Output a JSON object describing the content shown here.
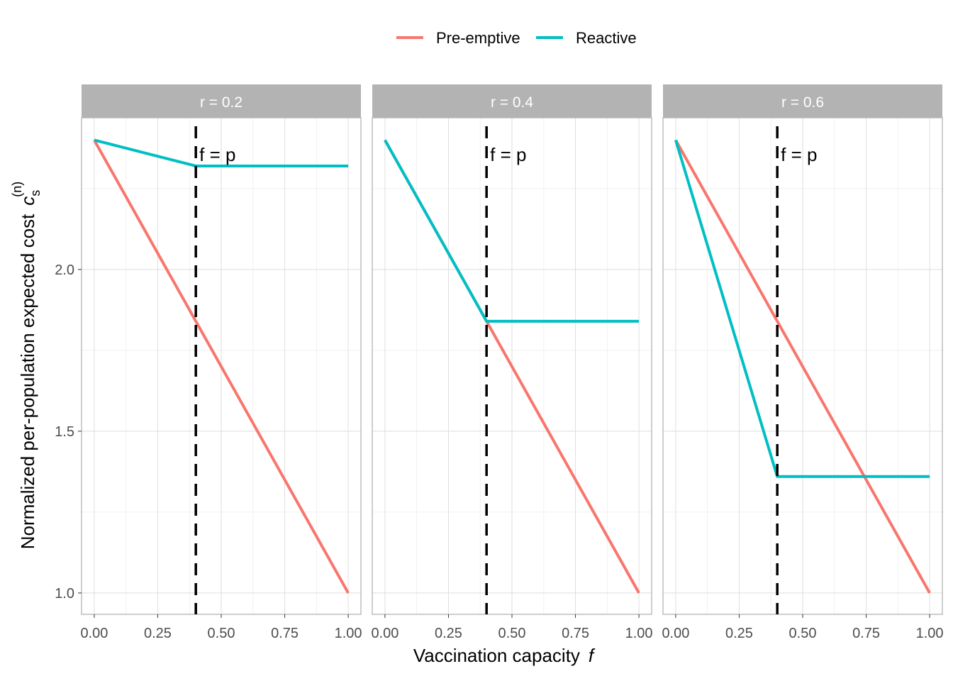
{
  "chart_data": {
    "type": "line",
    "xlabel": "Vaccination capacity",
    "xlabel_symbol": "f",
    "ylabel": "Normalized per-population expected cost",
    "ylabel_symbol": "c",
    "ylabel_sub": "s",
    "ylabel_sup": "(n)",
    "xlim": [
      -0.05,
      1.05
    ],
    "ylim": [
      0.934,
      2.469
    ],
    "x_ticks": [
      0,
      0.25,
      0.5,
      0.75,
      1.0
    ],
    "x_tick_labels": [
      "0.00",
      "0.25",
      "0.50",
      "0.75",
      "1.00"
    ],
    "y_ticks": [
      1.0,
      1.5,
      2.0
    ],
    "y_tick_labels": [
      "1.0",
      "1.5",
      "2.0"
    ],
    "grid": true,
    "legend": {
      "placement": "top",
      "entries": [
        {
          "name": "Pre-emptive",
          "color": "#F8766D"
        },
        {
          "name": "Reactive",
          "color": "#00BFC4"
        }
      ]
    },
    "vline": {
      "x": 0.4,
      "label": "f = p",
      "style": "dashed",
      "color": "#000000"
    },
    "panels": [
      {
        "title": "r = 0.2",
        "series": [
          {
            "name": "Pre-emptive",
            "x": [
              0,
              1
            ],
            "y": [
              2.4,
              1.0
            ]
          },
          {
            "name": "Reactive",
            "x": [
              0,
              0.4,
              1
            ],
            "y": [
              2.4,
              2.32,
              2.32
            ]
          }
        ]
      },
      {
        "title": "r = 0.4",
        "series": [
          {
            "name": "Pre-emptive",
            "x": [
              0,
              1
            ],
            "y": [
              2.4,
              1.0
            ]
          },
          {
            "name": "Reactive",
            "x": [
              0,
              0.4,
              1
            ],
            "y": [
              2.4,
              1.84,
              1.84
            ]
          }
        ]
      },
      {
        "title": "r = 0.6",
        "series": [
          {
            "name": "Pre-emptive",
            "x": [
              0,
              1
            ],
            "y": [
              2.4,
              1.0
            ]
          },
          {
            "name": "Reactive",
            "x": [
              0,
              0.4,
              1
            ],
            "y": [
              2.4,
              1.36,
              1.36
            ]
          }
        ]
      }
    ]
  }
}
